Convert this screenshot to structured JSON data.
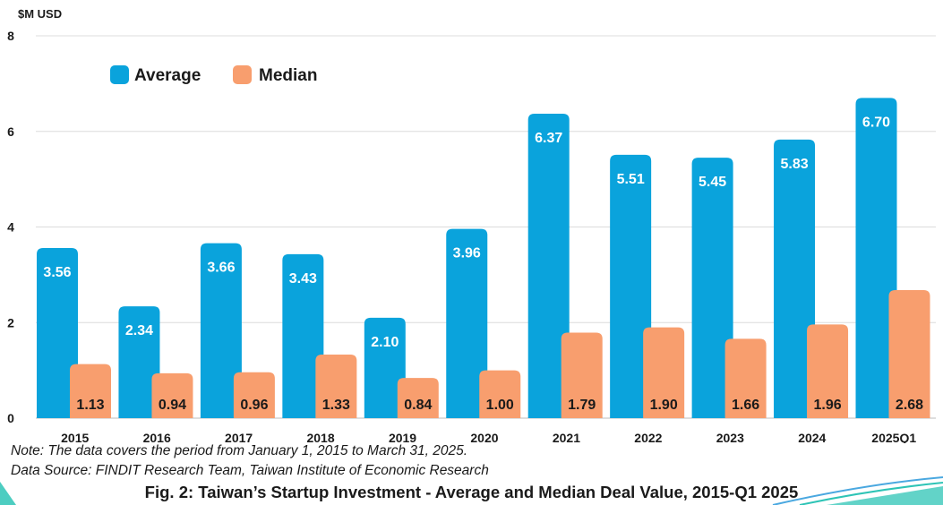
{
  "chart_data": {
    "type": "bar",
    "title": "Fig. 2: Taiwan’s Startup Investment - Average and Median Deal Value, 2015-Q1 2025",
    "ylabel": "$M USD",
    "xlabel": "",
    "ylim": [
      0,
      8
    ],
    "yticks": [
      0,
      2,
      4,
      6,
      8
    ],
    "grid": true,
    "legend_position": "top-left",
    "categories": [
      "2015",
      "2016",
      "2017",
      "2018",
      "2019",
      "2020",
      "2021",
      "2022",
      "2023",
      "2024",
      "2025Q1"
    ],
    "series": [
      {
        "name": "Average",
        "color": "#0aa3dc",
        "label_color": "#ffffff",
        "values": [
          3.56,
          2.34,
          3.66,
          3.43,
          2.1,
          3.96,
          6.37,
          5.51,
          5.45,
          5.83,
          6.7
        ],
        "labels": [
          "3.56",
          "2.34",
          "3.66",
          "3.43",
          "2.10",
          "3.96",
          "6.37",
          "5.51",
          "5.45",
          "5.83",
          "6.70"
        ]
      },
      {
        "name": "Median",
        "color": "#f89e6e",
        "label_color": "#1a1a1a",
        "values": [
          1.13,
          0.94,
          0.96,
          1.33,
          0.84,
          1.0,
          1.79,
          1.9,
          1.66,
          1.96,
          2.68
        ],
        "labels": [
          "1.13",
          "0.94",
          "0.96",
          "1.33",
          "0.84",
          "1.00",
          "1.79",
          "1.90",
          "1.66",
          "1.96",
          "2.68"
        ]
      }
    ]
  },
  "footer": {
    "note": "Note: The data covers the period from January 1, 2015 to March 31, 2025.",
    "source": "Data Source: FINDIT Research Team, Taiwan Institute of Economic Research",
    "caption": "Fig. 2: Taiwan’s Startup Investment - Average and Median Deal Value, 2015-Q1 2025"
  },
  "decoration": {
    "accent_teal": "#2ec4b6",
    "accent_blue": "#4aa8e0"
  }
}
